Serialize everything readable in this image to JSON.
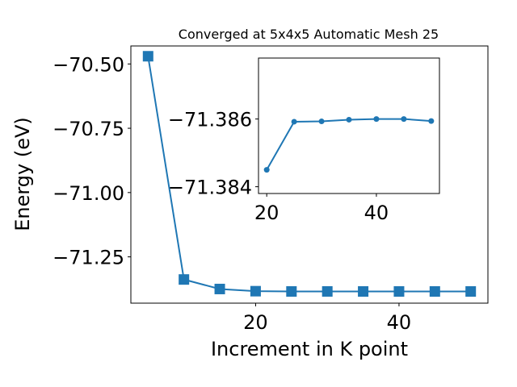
{
  "chart_data": [
    {
      "type": "line",
      "title": "Converged at 5x4x5 Automatic Mesh 25",
      "xlabel": "Increment in K point",
      "ylabel": "Energy (eV)",
      "x": [
        5,
        10,
        15,
        20,
        25,
        30,
        35,
        40,
        45,
        50
      ],
      "series": [
        {
          "values": [
            -70.47,
            -71.338,
            -71.375,
            -71.3835,
            -71.3845,
            -71.3844,
            -71.3845,
            -71.3845,
            -71.3845,
            -71.3845
          ]
        }
      ],
      "xlim": [
        2.6,
        52.4
      ],
      "ylim": [
        -71.43,
        -70.43
      ],
      "xticks": [
        20,
        40
      ],
      "yticks": [
        -70.5,
        -70.75,
        -71.0,
        -71.25
      ],
      "xtick_labels": [
        "20",
        "40"
      ],
      "ytick_labels": [
        "−70.50",
        "−70.75",
        "−71.00",
        "−71.25"
      ],
      "color": "#1f77b4",
      "marker": "square",
      "grid": false
    },
    {
      "type": "line",
      "title": "",
      "xlabel": "",
      "ylabel": "",
      "x": [
        20,
        25,
        30,
        35,
        40,
        45,
        50
      ],
      "series": [
        {
          "values": [
            -71.3845,
            -71.38592,
            -71.38593,
            -71.38598,
            -71.386,
            -71.386,
            -71.38594
          ]
        }
      ],
      "xlim": [
        18.5,
        51.5
      ],
      "ylim": [
        -71.3838,
        -71.3878
      ],
      "xticks": [
        20,
        40
      ],
      "yticks": [
        -71.386,
        -71.384
      ],
      "xtick_labels": [
        "20",
        "40"
      ],
      "ytick_labels": [
        "−71.386",
        "−71.384"
      ],
      "color": "#1f77b4",
      "marker": "circle",
      "grid": false,
      "inset": true
    }
  ]
}
